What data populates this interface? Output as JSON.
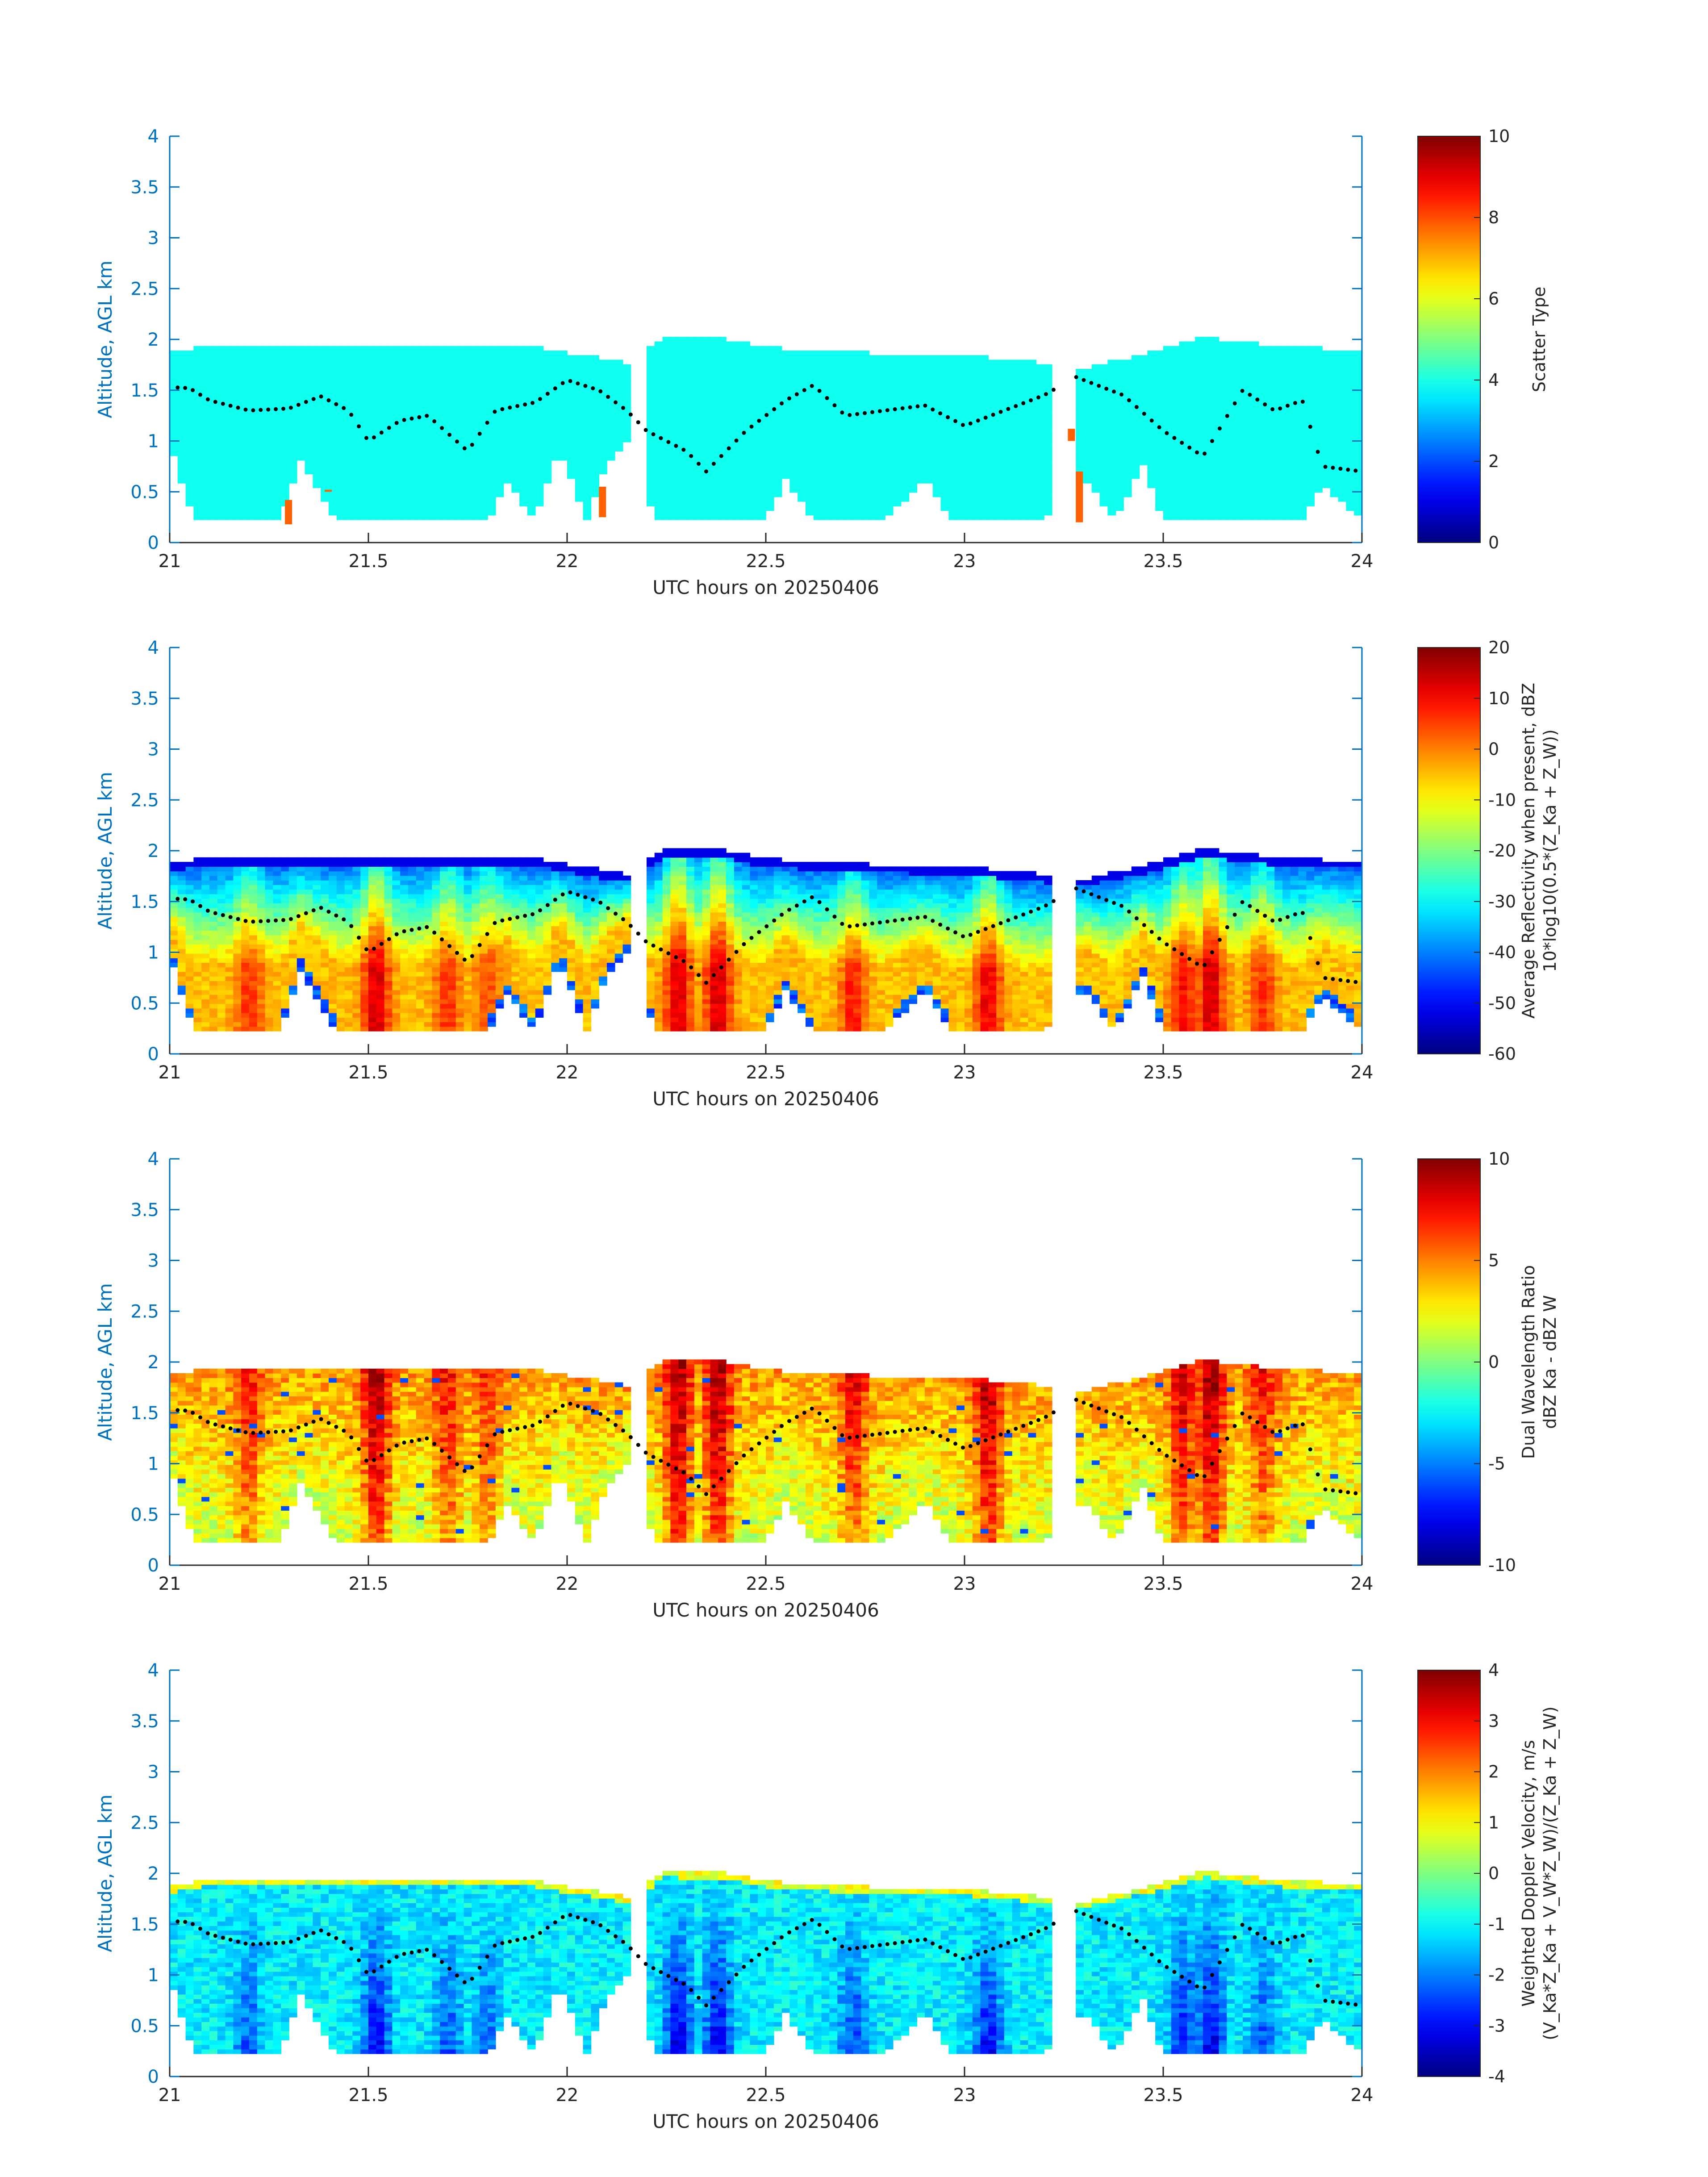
{
  "chart_data": [
    {
      "type": "heatmap",
      "panel": 1,
      "xlabel": "UTC hours on 20250406",
      "ylabel": "Altitude, AGL km",
      "xlim": [
        21,
        24
      ],
      "ylim": [
        0,
        4
      ],
      "xticks": [
        "21",
        "21.5",
        "22",
        "22.5",
        "23",
        "23.5",
        "24"
      ],
      "yticks": [
        "0",
        "0.5",
        "1",
        "1.5",
        "2",
        "2.5",
        "3",
        "3.5",
        "4"
      ],
      "colorbar": {
        "label_lines": [
          "Scatter Type"
        ],
        "min": 0,
        "max": 10,
        "ticks": [
          "0",
          "2",
          "4",
          "6",
          "8",
          "10"
        ]
      },
      "field": "scatter"
    },
    {
      "type": "heatmap",
      "panel": 2,
      "xlabel": "UTC hours on 20250406",
      "ylabel": "Altitude, AGL km",
      "xlim": [
        21,
        24
      ],
      "ylim": [
        0,
        4
      ],
      "xticks": [
        "21",
        "21.5",
        "22",
        "22.5",
        "23",
        "23.5",
        "24"
      ],
      "yticks": [
        "0",
        "0.5",
        "1",
        "1.5",
        "2",
        "2.5",
        "3",
        "3.5",
        "4"
      ],
      "colorbar": {
        "label_lines": [
          "Average Reflectivity when present, dBZ",
          "10*log10(0.5*(Z_Ka + Z_W))"
        ],
        "min": -60,
        "max": 20,
        "ticks": [
          "-60",
          "-50",
          "-40",
          "-30",
          "-20",
          "-10",
          "0",
          "10",
          "20"
        ]
      },
      "field": "reflectivity"
    },
    {
      "type": "heatmap",
      "panel": 3,
      "xlabel": "UTC hours on 20250406",
      "ylabel": "Altitude, AGL km",
      "xlim": [
        21,
        24
      ],
      "ylim": [
        0,
        4
      ],
      "xticks": [
        "21",
        "21.5",
        "22",
        "22.5",
        "23",
        "23.5",
        "24"
      ],
      "yticks": [
        "0",
        "0.5",
        "1",
        "1.5",
        "2",
        "2.5",
        "3",
        "3.5",
        "4"
      ],
      "colorbar": {
        "label_lines": [
          "Dual Wavelength Ratio",
          "dBZ Ka - dBZ W"
        ],
        "min": -10,
        "max": 10,
        "ticks": [
          "-10",
          "-5",
          "0",
          "5",
          "10"
        ]
      },
      "field": "dwr"
    },
    {
      "type": "heatmap",
      "panel": 4,
      "xlabel": "UTC hours on 20250406",
      "ylabel": "Altitude, AGL km",
      "xlim": [
        21,
        24
      ],
      "ylim": [
        0,
        4
      ],
      "xticks": [
        "21",
        "21.5",
        "22",
        "22.5",
        "23",
        "23.5",
        "24"
      ],
      "yticks": [
        "0",
        "0.5",
        "1",
        "1.5",
        "2",
        "2.5",
        "3",
        "3.5",
        "4"
      ],
      "colorbar": {
        "label_lines": [
          "Weighted Doppler Velocity, m/s",
          "(V_Ka*Z_Ka + V_W*Z_W)/(Z_Ka + Z_W)"
        ],
        "min": -4,
        "max": 4,
        "ticks": [
          "-4",
          "-3",
          "-2",
          "-1",
          "0",
          "1",
          "2",
          "3",
          "4"
        ]
      },
      "field": "velocity"
    }
  ],
  "shared": {
    "cloud_gaps_hours": [
      [
        22.17,
        22.2
      ],
      [
        23.23,
        23.28
      ]
    ],
    "cloud_top_km": [
      [
        21.0,
        1.85
      ],
      [
        21.1,
        1.92
      ],
      [
        21.5,
        1.92
      ],
      [
        21.9,
        1.92
      ],
      [
        22.0,
        1.85
      ],
      [
        22.15,
        1.75
      ],
      [
        22.25,
        2.0
      ],
      [
        22.4,
        1.98
      ],
      [
        22.5,
        1.9
      ],
      [
        22.7,
        1.85
      ],
      [
        23.0,
        1.82
      ],
      [
        23.2,
        1.75
      ],
      [
        23.3,
        1.7
      ],
      [
        23.5,
        1.88
      ],
      [
        23.6,
        2.0
      ],
      [
        23.8,
        1.9
      ],
      [
        24.0,
        1.88
      ]
    ],
    "cloud_base_km": [
      [
        21.0,
        0.95
      ],
      [
        21.06,
        0.2
      ],
      [
        21.28,
        0.2
      ],
      [
        21.33,
        0.8
      ],
      [
        21.42,
        0.2
      ],
      [
        21.8,
        0.2
      ],
      [
        21.85,
        0.55
      ],
      [
        21.92,
        0.2
      ],
      [
        21.98,
        0.9
      ],
      [
        22.05,
        0.2
      ],
      [
        22.1,
        0.75
      ],
      [
        22.16,
        1.0
      ],
      [
        22.22,
        0.2
      ],
      [
        22.5,
        0.2
      ],
      [
        22.55,
        0.6
      ],
      [
        22.62,
        0.2
      ],
      [
        22.8,
        0.2
      ],
      [
        22.9,
        0.6
      ],
      [
        22.97,
        0.2
      ],
      [
        23.2,
        0.2
      ],
      [
        23.3,
        0.6
      ],
      [
        23.38,
        0.2
      ],
      [
        23.45,
        0.75
      ],
      [
        23.5,
        0.2
      ],
      [
        23.85,
        0.2
      ],
      [
        23.9,
        0.55
      ],
      [
        24.0,
        0.2
      ]
    ],
    "freezing_level_km": [
      [
        21.0,
        1.53
      ],
      [
        21.05,
        1.52
      ],
      [
        21.1,
        1.4
      ],
      [
        21.2,
        1.3
      ],
      [
        21.3,
        1.32
      ],
      [
        21.38,
        1.44
      ],
      [
        21.45,
        1.3
      ],
      [
        21.5,
        1.0
      ],
      [
        21.58,
        1.2
      ],
      [
        21.65,
        1.25
      ],
      [
        21.75,
        0.9
      ],
      [
        21.82,
        1.3
      ],
      [
        21.92,
        1.38
      ],
      [
        22.0,
        1.6
      ],
      [
        22.08,
        1.5
      ],
      [
        22.15,
        1.3
      ],
      [
        22.2,
        1.1
      ],
      [
        22.3,
        0.9
      ],
      [
        22.35,
        0.7
      ],
      [
        22.45,
        1.1
      ],
      [
        22.55,
        1.4
      ],
      [
        22.62,
        1.55
      ],
      [
        22.7,
        1.25
      ],
      [
        22.8,
        1.3
      ],
      [
        22.9,
        1.35
      ],
      [
        23.0,
        1.15
      ],
      [
        23.1,
        1.3
      ],
      [
        23.2,
        1.45
      ],
      [
        23.28,
        1.63
      ],
      [
        23.4,
        1.45
      ],
      [
        23.5,
        1.1
      ],
      [
        23.6,
        0.85
      ],
      [
        23.7,
        1.5
      ],
      [
        23.78,
        1.3
      ],
      [
        23.85,
        1.4
      ],
      [
        23.9,
        0.75
      ],
      [
        24.0,
        0.7
      ]
    ]
  }
}
